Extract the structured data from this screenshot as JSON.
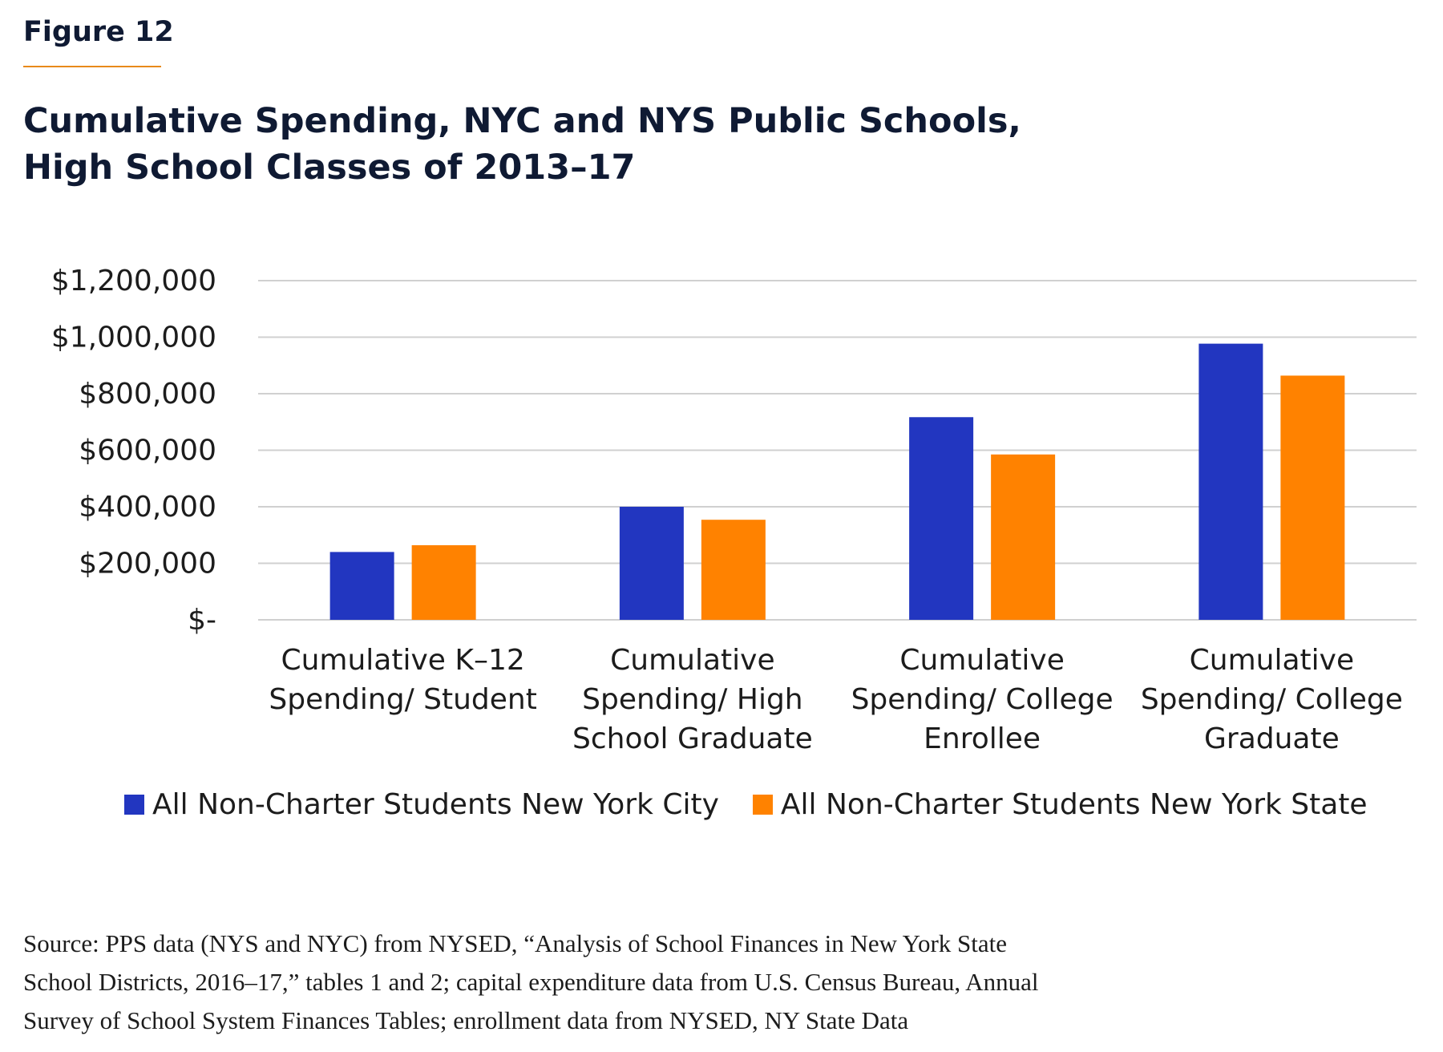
{
  "figure_label": "Figure 12",
  "title_lines": [
    "Cumulative Spending, NYC and NYS Public Schools,",
    "High School Classes of 2013–17"
  ],
  "colors": {
    "nyc": "#2236c0",
    "nys": "#ff8200",
    "grid": "#d0d0d0",
    "accent_rule": "#e88a1a"
  },
  "chart_data": {
    "type": "bar",
    "categories": [
      [
        "Cumulative K–12",
        "Spending/ Student"
      ],
      [
        "Cumulative",
        "Spending/ High",
        "School Graduate"
      ],
      [
        "Cumulative",
        "Spending/ College",
        "Enrollee"
      ],
      [
        "Cumulative",
        "Spending/ College",
        "Graduate"
      ]
    ],
    "series": [
      {
        "name": "All Non-Charter Students New York City",
        "values": [
          240000,
          400000,
          717000,
          977000
        ]
      },
      {
        "name": "All Non-Charter Students New York State",
        "values": [
          264000,
          354000,
          585000,
          864000
        ]
      }
    ],
    "ylim": [
      0,
      1200000
    ],
    "yticks": [
      0,
      200000,
      400000,
      600000,
      800000,
      1000000,
      1200000
    ],
    "ytick_labels": [
      "$-",
      "$200,000",
      "$400,000",
      "$600,000",
      "$800,000",
      "$1,000,000",
      "$1,200,000"
    ],
    "grid": true,
    "legend_position": "bottom"
  },
  "source_lines": [
    "Source: PPS data (NYS and NYC) from NYSED, “Analysis of School Finances in New York State",
    "School Districts, 2016–17,” tables 1 and 2; capital expenditure data from U.S. Census Bureau, Annual",
    "Survey of School System Finances Tables; enrollment data from NYSED, NY State Data"
  ]
}
